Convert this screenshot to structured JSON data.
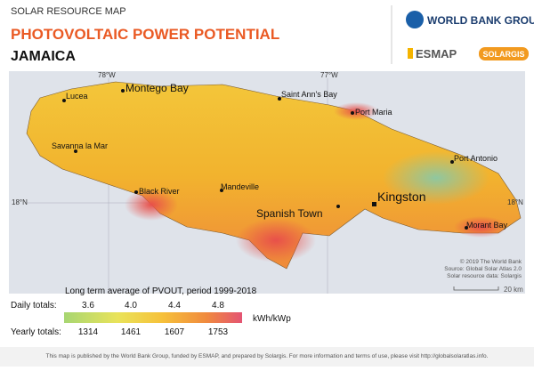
{
  "header": {
    "kicker": "SOLAR RESOURCE MAP",
    "title": "PHOTOVOLTAIC POWER POTENTIAL",
    "country": "JAMAICA"
  },
  "logos": {
    "world_bank": "WORLD BANK GROUP",
    "esmap": "ESMAP",
    "solargis": "SOLARGIS"
  },
  "map": {
    "graticule": {
      "lon_west": "78°W",
      "lon_east": "77°W",
      "lat_left": "18°N",
      "lat_right": "18°N"
    },
    "cities": [
      "Lucea",
      "Montego Bay",
      "Saint Ann's Bay",
      "Port Maria",
      "Savanna la Mar",
      "Port Antonio",
      "Black River",
      "Mandeville",
      "Kingston",
      "Spanish Town",
      "Morant Bay"
    ],
    "credits": [
      "© 2019 The World Bank",
      "Source: Global Solar Atlas 2.0",
      "Solar resource data: Solargis"
    ],
    "scale": "20 km"
  },
  "legend": {
    "title": "Long term average of PVOUT, period 1999-2018",
    "daily_label": "Daily totals:",
    "daily": [
      "3.6",
      "4.0",
      "4.4",
      "4.8"
    ],
    "unit": "kWh/kWp",
    "yearly_label": "Yearly totals:",
    "yearly": [
      "1314",
      "1461",
      "1607",
      "1753"
    ]
  },
  "footer": "This map is published by the World Bank Group, funded by ESMAP, and prepared by Solargis. For more information and terms of use, please visit http://globalsolaratlas.info."
}
